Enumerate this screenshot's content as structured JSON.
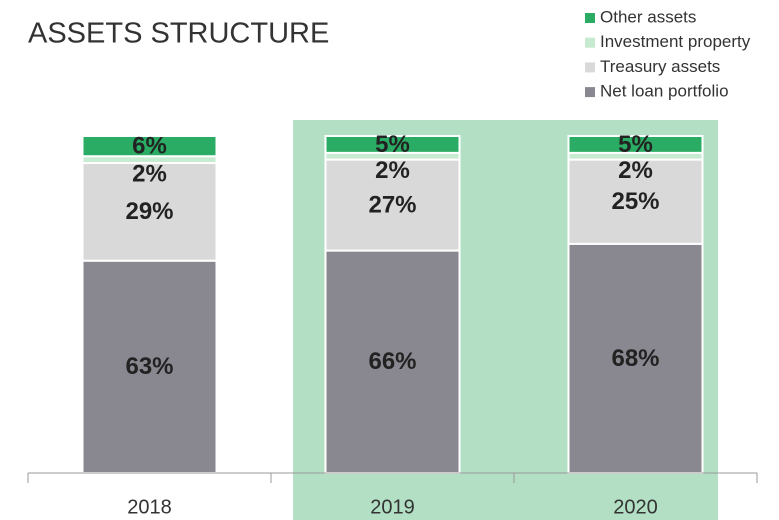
{
  "chart_data": {
    "type": "stacked_bar",
    "title": "ASSETS STRUCTURE",
    "categories": [
      "2018",
      "2019",
      "2020"
    ],
    "series": [
      {
        "name": "Net loan portfolio",
        "color": "#898891",
        "values": [
          63,
          66,
          68
        ],
        "value_labels": [
          "63%",
          "66%",
          "68%"
        ]
      },
      {
        "name": "Treasury assets",
        "color": "#d9d9d9",
        "values": [
          29,
          27,
          25
        ],
        "value_labels": [
          "29%",
          "27%",
          "25%"
        ]
      },
      {
        "name": "Investment property",
        "color": "#c6ebd0",
        "values": [
          2,
          2,
          2
        ],
        "value_labels": [
          "2%",
          "2%",
          "2%"
        ]
      },
      {
        "name": "Other assets",
        "color": "#2aac64",
        "values": [
          6,
          5,
          5
        ],
        "value_labels": [
          "6%",
          "5%",
          "5%"
        ]
      }
    ]
  }
}
